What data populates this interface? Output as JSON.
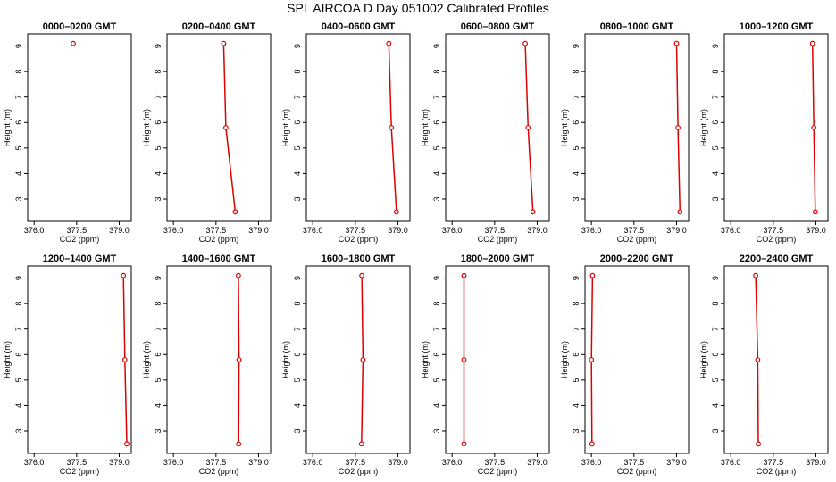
{
  "figure": {
    "title": "SPL AIRCOA D  Day 051002  Calibrated Profiles",
    "series_color": "#dd0000"
  },
  "chart_data": [
    {
      "type": "line",
      "title": "0000–0200 GMT",
      "xlabel": "CO2 (ppm)",
      "ylabel": "Height (m)",
      "xlim": [
        375.9,
        379.3
      ],
      "ylim": [
        2.3,
        9.3
      ],
      "xticks": [
        "376.0",
        "377.5",
        "379.0"
      ],
      "yticks": [
        "3",
        "4",
        "5",
        "6",
        "7",
        "8",
        "9"
      ],
      "series": [
        {
          "x": [
            377.38
          ],
          "y": [
            9.1
          ]
        }
      ]
    },
    {
      "type": "line",
      "title": "0200–0400 GMT",
      "xlabel": "CO2 (ppm)",
      "ylabel": "Height (m)",
      "xlim": [
        375.9,
        379.3
      ],
      "ylim": [
        2.3,
        9.3
      ],
      "xticks": [
        "376.0",
        "377.5",
        "379.0"
      ],
      "yticks": [
        "3",
        "4",
        "5",
        "6",
        "7",
        "8",
        "9"
      ],
      "series": [
        {
          "x": [
            378.18,
            377.85,
            377.77
          ],
          "y": [
            2.5,
            5.8,
            9.1
          ]
        }
      ]
    },
    {
      "type": "line",
      "title": "0400–0600 GMT",
      "xlabel": "CO2 (ppm)",
      "ylabel": "Height (m)",
      "xlim": [
        375.9,
        379.3
      ],
      "ylim": [
        2.3,
        9.3
      ],
      "xticks": [
        "376.0",
        "377.5",
        "379.0"
      ],
      "yticks": [
        "3",
        "4",
        "5",
        "6",
        "7",
        "8",
        "9"
      ],
      "series": [
        {
          "x": [
            378.95,
            378.77,
            378.68
          ],
          "y": [
            2.5,
            5.8,
            9.1
          ]
        }
      ]
    },
    {
      "type": "line",
      "title": "0600–0800 GMT",
      "xlabel": "CO2 (ppm)",
      "ylabel": "Height (m)",
      "xlim": [
        375.9,
        379.3
      ],
      "ylim": [
        2.3,
        9.3
      ],
      "xticks": [
        "376.0",
        "377.5",
        "379.0"
      ],
      "yticks": [
        "3",
        "4",
        "5",
        "6",
        "7",
        "8",
        "9"
      ],
      "series": [
        {
          "x": [
            378.85,
            378.68,
            378.58
          ],
          "y": [
            2.5,
            5.8,
            9.1
          ]
        }
      ]
    },
    {
      "type": "line",
      "title": "0800–1000 GMT",
      "xlabel": "CO2 (ppm)",
      "ylabel": "Height (m)",
      "xlim": [
        375.9,
        379.3
      ],
      "ylim": [
        2.3,
        9.3
      ],
      "xticks": [
        "376.0",
        "377.5",
        "379.0"
      ],
      "yticks": [
        "3",
        "4",
        "5",
        "6",
        "7",
        "8",
        "9"
      ],
      "series": [
        {
          "x": [
            379.12,
            379.05,
            379.0
          ],
          "y": [
            2.5,
            5.8,
            9.1
          ]
        }
      ]
    },
    {
      "type": "line",
      "title": "1000–1200 GMT",
      "xlabel": "CO2 (ppm)",
      "ylabel": "Height (m)",
      "xlim": [
        375.9,
        379.3
      ],
      "ylim": [
        2.3,
        9.3
      ],
      "xticks": [
        "376.0",
        "377.5",
        "379.0"
      ],
      "yticks": [
        "3",
        "4",
        "5",
        "6",
        "7",
        "8",
        "9"
      ],
      "series": [
        {
          "x": [
            378.98,
            378.93,
            378.88
          ],
          "y": [
            2.5,
            5.8,
            9.1
          ]
        }
      ]
    },
    {
      "type": "line",
      "title": "1200–1400 GMT",
      "xlabel": "CO2 (ppm)",
      "ylabel": "Height (m)",
      "xlim": [
        375.9,
        379.3
      ],
      "ylim": [
        2.3,
        9.3
      ],
      "xticks": [
        "376.0",
        "377.5",
        "379.0"
      ],
      "yticks": [
        "3",
        "4",
        "5",
        "6",
        "7",
        "8",
        "9"
      ],
      "series": [
        {
          "x": [
            379.27,
            379.2,
            379.15
          ],
          "y": [
            2.5,
            5.8,
            9.1
          ]
        }
      ]
    },
    {
      "type": "line",
      "title": "1400–1600 GMT",
      "xlabel": "CO2 (ppm)",
      "ylabel": "Height (m)",
      "xlim": [
        375.9,
        379.3
      ],
      "ylim": [
        2.3,
        9.3
      ],
      "xticks": [
        "376.0",
        "377.5",
        "379.0"
      ],
      "yticks": [
        "3",
        "4",
        "5",
        "6",
        "7",
        "8",
        "9"
      ],
      "series": [
        {
          "x": [
            378.3,
            378.31,
            378.29
          ],
          "y": [
            2.5,
            5.8,
            9.1
          ]
        }
      ]
    },
    {
      "type": "line",
      "title": "1600–1800 GMT",
      "xlabel": "CO2 (ppm)",
      "ylabel": "Height (m)",
      "xlim": [
        375.9,
        379.3
      ],
      "ylim": [
        2.3,
        9.3
      ],
      "xticks": [
        "376.0",
        "377.5",
        "379.0"
      ],
      "yticks": [
        "3",
        "4",
        "5",
        "6",
        "7",
        "8",
        "9"
      ],
      "series": [
        {
          "x": [
            377.72,
            377.77,
            377.73
          ],
          "y": [
            2.5,
            5.8,
            9.1
          ]
        }
      ]
    },
    {
      "type": "line",
      "title": "1800–2000 GMT",
      "xlabel": "CO2 (ppm)",
      "ylabel": "Height (m)",
      "xlim": [
        375.9,
        379.3
      ],
      "ylim": [
        2.3,
        9.3
      ],
      "xticks": [
        "376.0",
        "377.5",
        "379.0"
      ],
      "yticks": [
        "3",
        "4",
        "5",
        "6",
        "7",
        "8",
        "9"
      ],
      "series": [
        {
          "x": [
            376.42,
            376.42,
            376.42
          ],
          "y": [
            2.5,
            5.8,
            9.1
          ]
        }
      ]
    },
    {
      "type": "line",
      "title": "2000–2200 GMT",
      "xlabel": "CO2 (ppm)",
      "ylabel": "Height (m)",
      "xlim": [
        375.9,
        379.3
      ],
      "ylim": [
        2.3,
        9.3
      ],
      "xticks": [
        "376.0",
        "377.5",
        "379.0"
      ],
      "yticks": [
        "3",
        "4",
        "5",
        "6",
        "7",
        "8",
        "9"
      ],
      "series": [
        {
          "x": [
            376.02,
            376.0,
            376.04
          ],
          "y": [
            2.5,
            5.8,
            9.1
          ]
        }
      ]
    },
    {
      "type": "line",
      "title": "2200–2400 GMT",
      "xlabel": "CO2 (ppm)",
      "ylabel": "Height (m)",
      "xlim": [
        375.9,
        379.3
      ],
      "ylim": [
        2.3,
        9.3
      ],
      "xticks": [
        "376.0",
        "377.5",
        "379.0"
      ],
      "yticks": [
        "3",
        "4",
        "5",
        "6",
        "7",
        "8",
        "9"
      ],
      "series": [
        {
          "x": [
            376.97,
            376.95,
            376.88
          ],
          "y": [
            2.5,
            5.8,
            9.1
          ]
        }
      ]
    }
  ]
}
